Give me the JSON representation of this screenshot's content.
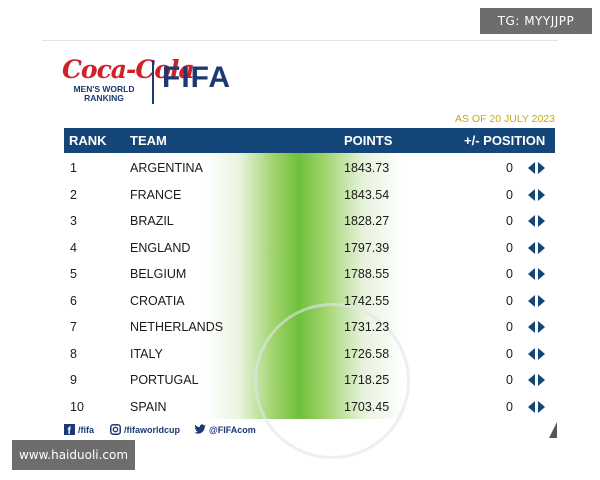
{
  "watermark_top": "TG: MYYJJPP",
  "watermark_bottom": "www.haiduoli.com",
  "logo": {
    "coca_cola": "Coca-Cola",
    "subtitle_line1": "MEN'S WORLD",
    "subtitle_line2": "RANKING",
    "fifa": "FIFA"
  },
  "as_of": "AS OF 20 JULY 2023",
  "table": {
    "headers": {
      "rank": "RANK",
      "team": "TEAM",
      "points": "POINTS",
      "position": "+/- POSITION"
    },
    "rows": [
      {
        "rank": "1",
        "team": "ARGENTINA",
        "points": "1843.73",
        "change": "0"
      },
      {
        "rank": "2",
        "team": "FRANCE",
        "points": "1843.54",
        "change": "0"
      },
      {
        "rank": "3",
        "team": "BRAZIL",
        "points": "1828.27",
        "change": "0"
      },
      {
        "rank": "4",
        "team": "ENGLAND",
        "points": "1797.39",
        "change": "0"
      },
      {
        "rank": "5",
        "team": "BELGIUM",
        "points": "1788.55",
        "change": "0"
      },
      {
        "rank": "6",
        "team": "CROATIA",
        "points": "1742.55",
        "change": "0"
      },
      {
        "rank": "7",
        "team": "NETHERLANDS",
        "points": "1731.23",
        "change": "0"
      },
      {
        "rank": "8",
        "team": "ITALY",
        "points": "1726.58",
        "change": "0"
      },
      {
        "rank": "9",
        "team": "PORTUGAL",
        "points": "1718.25",
        "change": "0"
      },
      {
        "rank": "10",
        "team": "SPAIN",
        "points": "1703.45",
        "change": "0"
      }
    ]
  },
  "social": {
    "facebook": "/fifa",
    "instagram": "/fifaworldcup",
    "twitter": "@FIFAcom"
  },
  "colors": {
    "header_bg": "#14467a",
    "accent_green": "#6fbf3c",
    "coke_red": "#d2202b",
    "as_of_gold": "#c9a515"
  }
}
